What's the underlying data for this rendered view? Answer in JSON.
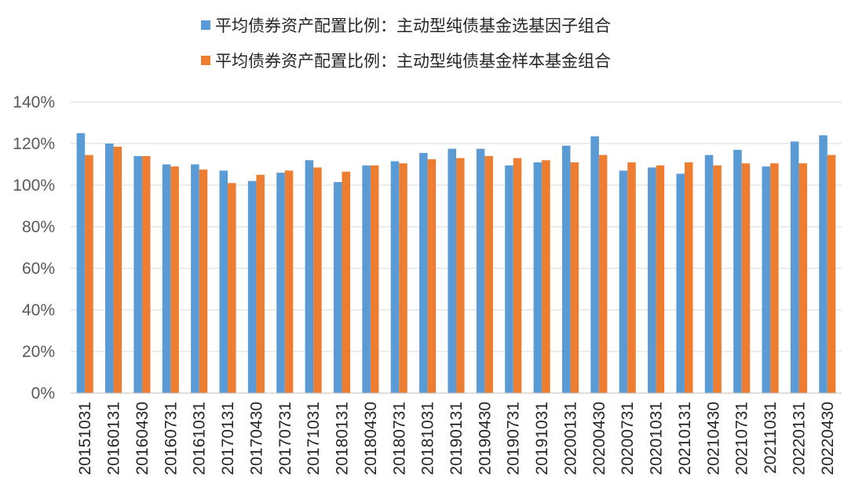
{
  "chart_data": {
    "type": "bar",
    "categories": [
      "20151031",
      "20160131",
      "20160430",
      "20160731",
      "20161031",
      "20170131",
      "20170430",
      "20170731",
      "20171031",
      "20180131",
      "20180430",
      "20180731",
      "20181031",
      "20190131",
      "20190430",
      "20190731",
      "20191031",
      "20200131",
      "20200430",
      "20200731",
      "20201031",
      "20210131",
      "20210430",
      "20210731",
      "20211031",
      "20220131",
      "20220430"
    ],
    "series": [
      {
        "name": "平均债券资产配置比例：主动型纯债基金选基因子组合",
        "color": "#5B9BD5",
        "values": [
          125,
          120,
          114,
          110,
          110,
          107,
          102,
          106,
          112,
          101.5,
          109.5,
          111.5,
          115.5,
          117.5,
          117.5,
          109.5,
          111,
          119,
          123.5,
          107,
          108.5,
          105.5,
          114.5,
          117,
          109,
          121,
          124
        ]
      },
      {
        "name": "平均债券资产配置比例：主动型纯债基金样本基金组合",
        "color": "#ED7D31",
        "values": [
          114.5,
          118.5,
          114,
          109,
          107.5,
          101,
          105,
          107,
          108.5,
          106.5,
          109.5,
          110.5,
          112.5,
          113,
          114,
          113,
          112,
          111,
          114.5,
          111,
          109.5,
          111,
          109.5,
          110.5,
          110.5,
          110.5,
          114.5
        ]
      }
    ],
    "y_ticks": [
      "0%",
      "20%",
      "40%",
      "60%",
      "80%",
      "100%",
      "120%",
      "140%"
    ],
    "ylim": [
      0,
      140
    ],
    "y_unit": "%",
    "grid": true,
    "legend_position": "top-center"
  }
}
